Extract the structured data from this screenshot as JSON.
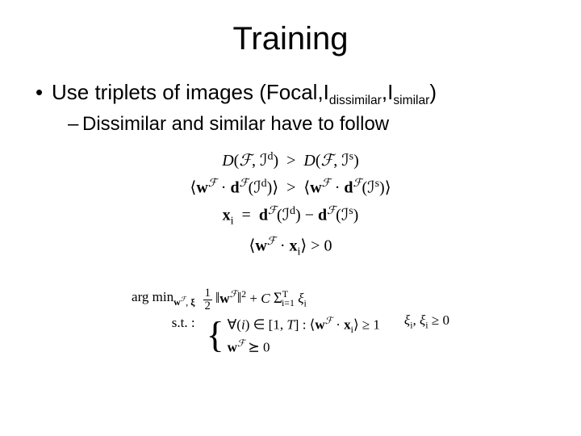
{
  "title": "Training",
  "bullet1_pre": "Use triplets of images (Focal,I",
  "bullet1_sub1": "dissimilar",
  "bullet1_mid": ",I",
  "bullet1_sub2": "similar",
  "bullet1_post": ")",
  "bullet2": "Dissimilar and similar have to follow",
  "eq1": "D(ℱ, ℐᵈ)  >  D(ℱ, ℐˢ)",
  "eq2": "⟨ wᶠ · dᶠ(ℐᵈ) ⟩  >  ⟨ wᶠ · dᶠ(ℐˢ) ⟩",
  "eq3": "xᵢ  =  dᶠ(ℐᵈ) − dᶠ(ℐˢ)",
  "eq4": "⟨ wᶠ · xᵢ ⟩ > 0",
  "opt_argmin": "arg min",
  "opt_argmin_sub": "wᶠ, ξ",
  "opt_st": "s.t. :",
  "opt_obj_a": "‖wᶠ‖² + C Σ",
  "opt_obj_sum_top": "T",
  "opt_obj_sum_bot": "i=1",
  "opt_obj_b": " ξᵢ",
  "opt_c1": "∀(i) ∈ [1, T] : ⟨ wᶠ · xᵢ ⟩ ≥ 1",
  "opt_c2": "wᶠ ⪰ 0",
  "opt_side": "ξᵢ, ξᵢ ≥ 0",
  "half_num": "1",
  "half_den": "2"
}
